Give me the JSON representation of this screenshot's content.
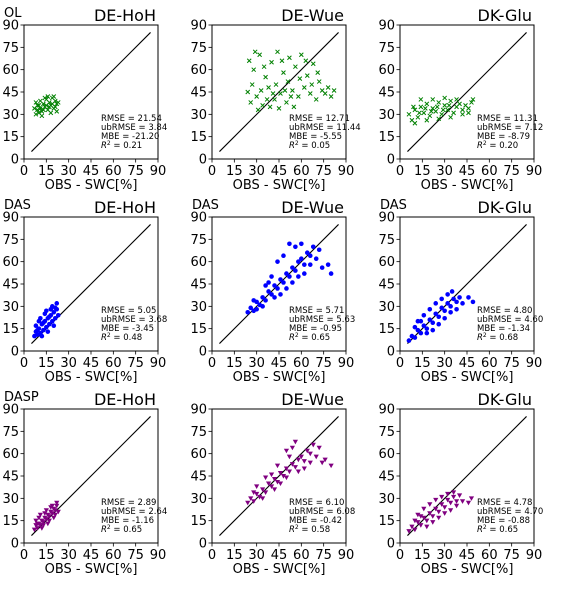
{
  "axis": {
    "xlabel": "OBS - SWC[%]",
    "ticks": [
      0,
      15,
      30,
      45,
      60,
      75,
      90
    ],
    "xlim": [
      0,
      90
    ],
    "ylim": [
      0,
      90
    ]
  },
  "chart_data": [
    {
      "type": "scatter",
      "experiment": "OL",
      "site": "DE-HoH",
      "marker": "x",
      "color": "#008000",
      "stats": {
        "rmse": "RMSE = 21.54",
        "ubrmse": "ubRMSE = 3.84",
        "mbe": "MBE = -21.20",
        "r2_prefix": "R",
        "r2_value": " = 0.21"
      },
      "points": [
        [
          7,
          34
        ],
        [
          8,
          38
        ],
        [
          9,
          33
        ],
        [
          10,
          36
        ],
        [
          11,
          39
        ],
        [
          12,
          32
        ],
        [
          13,
          37
        ],
        [
          14,
          35
        ],
        [
          15,
          40
        ],
        [
          16,
          33
        ],
        [
          17,
          38
        ],
        [
          18,
          36
        ],
        [
          19,
          41
        ],
        [
          20,
          34
        ],
        [
          21,
          39
        ],
        [
          22,
          37
        ],
        [
          8,
          30
        ],
        [
          10,
          31
        ],
        [
          12,
          29
        ],
        [
          14,
          41
        ],
        [
          16,
          42
        ],
        [
          18,
          31
        ],
        [
          20,
          42
        ],
        [
          22,
          32
        ],
        [
          11,
          34
        ],
        [
          13,
          33
        ],
        [
          15,
          36
        ],
        [
          17,
          35
        ],
        [
          19,
          37
        ],
        [
          21,
          35
        ],
        [
          9,
          36
        ],
        [
          23,
          38
        ]
      ]
    },
    {
      "type": "scatter",
      "experiment": "",
      "site": "DE-Wue",
      "marker": "x",
      "color": "#008000",
      "stats": {
        "rmse": "RMSE = 12.71",
        "ubrmse": "ubRMSE = 11.44",
        "mbe": "MBE = -5.55",
        "r2_prefix": "R",
        "r2_value": " = 0.05"
      },
      "points": [
        [
          24,
          45
        ],
        [
          26,
          38
        ],
        [
          28,
          60
        ],
        [
          30,
          42
        ],
        [
          32,
          70
        ],
        [
          34,
          36
        ],
        [
          36,
          55
        ],
        [
          38,
          48
        ],
        [
          40,
          65
        ],
        [
          42,
          40
        ],
        [
          44,
          72
        ],
        [
          46,
          44
        ],
        [
          48,
          58
        ],
        [
          50,
          38
        ],
        [
          52,
          68
        ],
        [
          54,
          46
        ],
        [
          56,
          62
        ],
        [
          58,
          42
        ],
        [
          60,
          70
        ],
        [
          62,
          48
        ],
        [
          64,
          56
        ],
        [
          66,
          44
        ],
        [
          68,
          64
        ],
        [
          70,
          40
        ],
        [
          72,
          52
        ],
        [
          74,
          46
        ],
        [
          76,
          44
        ],
        [
          78,
          48
        ],
        [
          80,
          42
        ],
        [
          82,
          46
        ],
        [
          27,
          50
        ],
        [
          31,
          33
        ],
        [
          35,
          62
        ],
        [
          39,
          35
        ],
        [
          43,
          50
        ],
        [
          47,
          66
        ],
        [
          51,
          52
        ],
        [
          55,
          35
        ],
        [
          59,
          54
        ],
        [
          63,
          66
        ],
        [
          67,
          50
        ],
        [
          71,
          58
        ],
        [
          25,
          66
        ],
        [
          29,
          72
        ],
        [
          33,
          46
        ],
        [
          37,
          40
        ],
        [
          41,
          44
        ],
        [
          45,
          34
        ],
        [
          49,
          46
        ],
        [
          53,
          42
        ]
      ]
    },
    {
      "type": "scatter",
      "experiment": "",
      "site": "DK-Glu",
      "marker": "x",
      "color": "#008000",
      "stats": {
        "rmse": "RMSE = 11.31",
        "ubrmse": "ubRMSE = 7.12",
        "mbe": "MBE = -8.79",
        "r2_prefix": "R",
        "r2_value": " = 0.20"
      },
      "points": [
        [
          6,
          30
        ],
        [
          8,
          26
        ],
        [
          10,
          33
        ],
        [
          12,
          28
        ],
        [
          14,
          35
        ],
        [
          16,
          31
        ],
        [
          18,
          37
        ],
        [
          20,
          29
        ],
        [
          22,
          34
        ],
        [
          24,
          32
        ],
        [
          26,
          38
        ],
        [
          28,
          30
        ],
        [
          30,
          36
        ],
        [
          32,
          33
        ],
        [
          34,
          39
        ],
        [
          36,
          31
        ],
        [
          38,
          35
        ],
        [
          40,
          37
        ],
        [
          42,
          33
        ],
        [
          44,
          36
        ],
        [
          46,
          34
        ],
        [
          48,
          38
        ],
        [
          10,
          24
        ],
        [
          14,
          40
        ],
        [
          18,
          26
        ],
        [
          22,
          40
        ],
        [
          26,
          27
        ],
        [
          30,
          41
        ],
        [
          34,
          28
        ],
        [
          38,
          40
        ],
        [
          42,
          30
        ],
        [
          46,
          31
        ],
        [
          49,
          40
        ],
        [
          9,
          35
        ],
        [
          13,
          31
        ],
        [
          17,
          34
        ],
        [
          21,
          32
        ],
        [
          25,
          35
        ],
        [
          29,
          33
        ],
        [
          33,
          36
        ]
      ]
    },
    {
      "type": "scatter",
      "experiment": "DAS",
      "site": "DE-HoH",
      "marker": "o",
      "color": "#0000ff",
      "stats": {
        "rmse": "RMSE = 5.05",
        "ubrmse": "ubRMSE = 3.68",
        "mbe": "MBE = -3.45",
        "r2_prefix": "R",
        "r2_value": " = 0.48"
      },
      "points": [
        [
          7,
          10
        ],
        [
          8,
          13
        ],
        [
          9,
          11
        ],
        [
          10,
          15
        ],
        [
          11,
          12
        ],
        [
          12,
          18
        ],
        [
          13,
          14
        ],
        [
          14,
          20
        ],
        [
          15,
          16
        ],
        [
          16,
          22
        ],
        [
          17,
          18
        ],
        [
          18,
          24
        ],
        [
          19,
          20
        ],
        [
          20,
          26
        ],
        [
          21,
          22
        ],
        [
          22,
          28
        ],
        [
          8,
          17
        ],
        [
          10,
          20
        ],
        [
          12,
          10
        ],
        [
          14,
          25
        ],
        [
          16,
          13
        ],
        [
          18,
          28
        ],
        [
          20,
          17
        ],
        [
          22,
          32
        ],
        [
          23,
          24
        ],
        [
          11,
          22
        ],
        [
          13,
          19
        ],
        [
          15,
          27
        ],
        [
          17,
          23
        ],
        [
          19,
          30
        ],
        [
          21,
          29
        ],
        [
          9,
          14
        ]
      ]
    },
    {
      "type": "scatter",
      "experiment": "DAS",
      "site": "DE-Wue",
      "marker": "o",
      "color": "#0000ff",
      "stats": {
        "rmse": "RMSE = 5.71",
        "ubrmse": "ubRMSE = 5.63",
        "mbe": "MBE = -0.95",
        "r2_prefix": "R",
        "r2_value": " = 0.65"
      },
      "points": [
        [
          24,
          26
        ],
        [
          26,
          29
        ],
        [
          28,
          27
        ],
        [
          30,
          33
        ],
        [
          32,
          31
        ],
        [
          34,
          36
        ],
        [
          36,
          34
        ],
        [
          38,
          40
        ],
        [
          40,
          38
        ],
        [
          42,
          44
        ],
        [
          44,
          42
        ],
        [
          46,
          48
        ],
        [
          48,
          46
        ],
        [
          50,
          52
        ],
        [
          52,
          50
        ],
        [
          54,
          56
        ],
        [
          56,
          54
        ],
        [
          58,
          60
        ],
        [
          60,
          62
        ],
        [
          62,
          58
        ],
        [
          64,
          66
        ],
        [
          66,
          64
        ],
        [
          68,
          70
        ],
        [
          70,
          62
        ],
        [
          72,
          68
        ],
        [
          74,
          56
        ],
        [
          78,
          58
        ],
        [
          80,
          52
        ],
        [
          44,
          60
        ],
        [
          48,
          64
        ],
        [
          52,
          72
        ],
        [
          56,
          70
        ],
        [
          46,
          38
        ],
        [
          50,
          42
        ],
        [
          54,
          46
        ],
        [
          38,
          46
        ],
        [
          34,
          30
        ],
        [
          30,
          28
        ],
        [
          42,
          36
        ],
        [
          58,
          50
        ],
        [
          62,
          52
        ],
        [
          66,
          58
        ],
        [
          40,
          50
        ],
        [
          36,
          44
        ],
        [
          28,
          34
        ],
        [
          60,
          72
        ]
      ]
    },
    {
      "type": "scatter",
      "experiment": "DAS",
      "site": "DK-Glu",
      "marker": "o",
      "color": "#0000ff",
      "stats": {
        "rmse": "RMSE = 4.80",
        "ubrmse": "ubRMSE = 4.60",
        "mbe": "MBE = -1.34",
        "r2_prefix": "R",
        "r2_value": " = 0.68"
      },
      "points": [
        [
          6,
          7
        ],
        [
          8,
          10
        ],
        [
          10,
          9
        ],
        [
          12,
          14
        ],
        [
          14,
          12
        ],
        [
          16,
          17
        ],
        [
          18,
          15
        ],
        [
          20,
          21
        ],
        [
          22,
          19
        ],
        [
          24,
          25
        ],
        [
          26,
          23
        ],
        [
          28,
          29
        ],
        [
          30,
          27
        ],
        [
          32,
          32
        ],
        [
          34,
          30
        ],
        [
          36,
          35
        ],
        [
          38,
          33
        ],
        [
          40,
          36
        ],
        [
          12,
          20
        ],
        [
          16,
          24
        ],
        [
          20,
          28
        ],
        [
          24,
          32
        ],
        [
          28,
          35
        ],
        [
          32,
          38
        ],
        [
          18,
          12
        ],
        [
          22,
          14
        ],
        [
          26,
          18
        ],
        [
          30,
          22
        ],
        [
          34,
          26
        ],
        [
          38,
          28
        ],
        [
          42,
          32
        ],
        [
          46,
          36
        ],
        [
          49,
          33
        ],
        [
          10,
          16
        ],
        [
          14,
          20
        ],
        [
          35,
          40
        ]
      ]
    },
    {
      "type": "scatter",
      "experiment": "DASP",
      "site": "DE-HoH",
      "marker": "v",
      "color": "#800080",
      "stats": {
        "rmse": "RMSE = 2.89",
        "ubrmse": "ubRMSE = 2.64",
        "mbe": "MBE = -1.16",
        "r2_prefix": "R",
        "r2_value": " = 0.65"
      },
      "points": [
        [
          7,
          9
        ],
        [
          8,
          12
        ],
        [
          9,
          10
        ],
        [
          10,
          13
        ],
        [
          11,
          12
        ],
        [
          12,
          15
        ],
        [
          13,
          14
        ],
        [
          14,
          17
        ],
        [
          15,
          16
        ],
        [
          16,
          19
        ],
        [
          17,
          18
        ],
        [
          18,
          21
        ],
        [
          19,
          20
        ],
        [
          20,
          23
        ],
        [
          21,
          22
        ],
        [
          22,
          25
        ],
        [
          8,
          15
        ],
        [
          10,
          17
        ],
        [
          12,
          10
        ],
        [
          14,
          20
        ],
        [
          16,
          13
        ],
        [
          18,
          24
        ],
        [
          20,
          17
        ],
        [
          22,
          27
        ],
        [
          23,
          21
        ],
        [
          11,
          19
        ],
        [
          13,
          12
        ],
        [
          15,
          22
        ],
        [
          17,
          15
        ],
        [
          19,
          25
        ],
        [
          21,
          19
        ],
        [
          9,
          13
        ]
      ]
    },
    {
      "type": "scatter",
      "experiment": "",
      "site": "DE-Wue",
      "marker": "v",
      "color": "#800080",
      "stats": {
        "rmse": "RMSE = 6.10",
        "ubrmse": "ubRMSE = 6.08",
        "mbe": "MBE = -0.42",
        "r2_prefix": "R",
        "r2_value": " = 0.58"
      },
      "points": [
        [
          24,
          27
        ],
        [
          26,
          30
        ],
        [
          28,
          28
        ],
        [
          30,
          33
        ],
        [
          32,
          31
        ],
        [
          34,
          36
        ],
        [
          36,
          34
        ],
        [
          38,
          40
        ],
        [
          40,
          38
        ],
        [
          42,
          43
        ],
        [
          44,
          41
        ],
        [
          46,
          47
        ],
        [
          48,
          45
        ],
        [
          50,
          50
        ],
        [
          52,
          48
        ],
        [
          54,
          53
        ],
        [
          56,
          51
        ],
        [
          58,
          56
        ],
        [
          60,
          58
        ],
        [
          62,
          55
        ],
        [
          64,
          62
        ],
        [
          66,
          60
        ],
        [
          68,
          66
        ],
        [
          70,
          58
        ],
        [
          72,
          64
        ],
        [
          74,
          54
        ],
        [
          76,
          56
        ],
        [
          80,
          52
        ],
        [
          50,
          62
        ],
        [
          54,
          64
        ],
        [
          56,
          68
        ],
        [
          46,
          40
        ],
        [
          50,
          44
        ],
        [
          40,
          46
        ],
        [
          34,
          30
        ],
        [
          30,
          38
        ],
        [
          42,
          36
        ],
        [
          58,
          48
        ],
        [
          62,
          50
        ],
        [
          66,
          54
        ],
        [
          44,
          52
        ],
        [
          36,
          44
        ],
        [
          28,
          34
        ],
        [
          52,
          58
        ]
      ]
    },
    {
      "type": "scatter",
      "experiment": "",
      "site": "DK-Glu",
      "marker": "v",
      "color": "#800080",
      "stats": {
        "rmse": "RMSE = 4.78",
        "ubrmse": "ubRMSE = 4.70",
        "mbe": "MBE = -0.88",
        "r2_prefix": "R",
        "r2_value": " = 0.65"
      },
      "points": [
        [
          6,
          8
        ],
        [
          8,
          11
        ],
        [
          10,
          9
        ],
        [
          12,
          14
        ],
        [
          14,
          12
        ],
        [
          16,
          17
        ],
        [
          18,
          15
        ],
        [
          20,
          20
        ],
        [
          22,
          18
        ],
        [
          24,
          23
        ],
        [
          26,
          21
        ],
        [
          28,
          26
        ],
        [
          30,
          24
        ],
        [
          32,
          29
        ],
        [
          34,
          27
        ],
        [
          36,
          31
        ],
        [
          38,
          28
        ],
        [
          40,
          32
        ],
        [
          12,
          19
        ],
        [
          16,
          23
        ],
        [
          20,
          26
        ],
        [
          24,
          29
        ],
        [
          28,
          31
        ],
        [
          32,
          33
        ],
        [
          18,
          11
        ],
        [
          22,
          14
        ],
        [
          26,
          17
        ],
        [
          30,
          20
        ],
        [
          34,
          22
        ],
        [
          38,
          25
        ],
        [
          42,
          28
        ],
        [
          46,
          27
        ],
        [
          48,
          30
        ],
        [
          10,
          15
        ],
        [
          14,
          18
        ],
        [
          36,
          34
        ]
      ]
    }
  ]
}
